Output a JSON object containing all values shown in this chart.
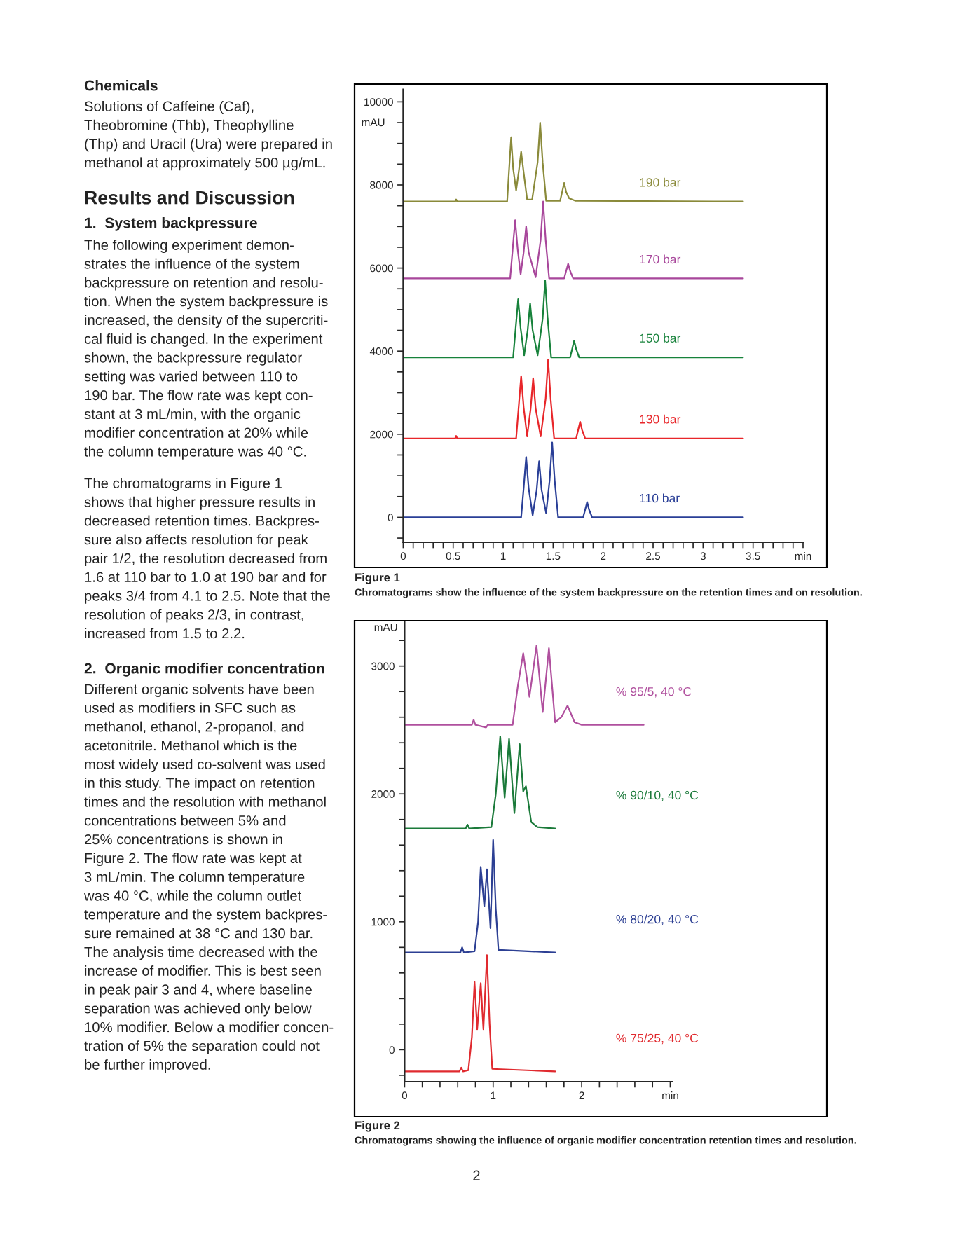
{
  "chart_data": [
    {
      "type": "line",
      "ylabel": "mAU",
      "annotations": [
        "Figure 1",
        "Chromatograms show the influence of the system backpressure on the retention times and on resolution.",
        "Chemicals",
        "Solutions of Caffeine (Caf),\nTheobromine (Thb), Theophylline\n(Thp) and Uracil (Ura) were prepared in\nmethanol at approximately 500 µg/mL.",
        "Results and Discussion",
        "1.  System backpressure",
        "The following experiment demon-\nstrates the influence of the system\nbackpressure on retention and resolu-\ntion. When the system backpressure is\nincreased, the density of the supercriti-\ncal fluid is changed. In the experiment\nshown, the backpressure regulator\nsetting was varied between 110 to\n190 bar. The flow rate was kept con-\nstant at 3 mL/min, with the organic\nmodifier concentration at 20% while\nthe column temperature was 40 °C.",
        "The chromatograms in Figure 1\nshows that higher pressure results in\ndecreased retention times. Backpres-\nsure also affects resolution for peak\npair 1/2, the resolution decreased from\n1.6 at 110 bar to 1.0 at 190 bar and for\npeaks 3/4 from 4.1 to 2.5. Note that the\nresolution of peaks 2/3, in contrast,\nincreased from 1.5 to 2.2."
      ],
      "xlim": [
        0,
        4
      ],
      "ylim": [
        -600,
        10300
      ],
      "xticks": [
        0,
        {
          "value": 0.1,
          "label": null
        },
        {
          "value": 0.2,
          "label": null
        },
        {
          "value": 0.3,
          "label": null
        },
        {
          "value": 0.4,
          "label": null
        },
        0.5,
        {
          "value": 0.6,
          "label": null
        },
        {
          "value": 0.7,
          "label": null
        },
        {
          "value": 0.8,
          "label": null
        },
        {
          "value": 0.9,
          "label": null
        },
        1,
        {
          "value": 1.1,
          "label": null
        },
        {
          "value": 1.2,
          "label": null
        },
        {
          "value": 1.3,
          "label": null
        },
        {
          "value": 1.4,
          "label": null
        },
        1.5,
        {
          "value": 1.6,
          "label": null
        },
        {
          "value": 1.7,
          "label": null
        },
        {
          "value": 1.8,
          "label": null
        },
        {
          "value": 1.9,
          "label": null
        },
        2,
        {
          "value": 2.1,
          "label": null
        },
        {
          "value": 2.2,
          "label": null
        },
        {
          "value": 2.3,
          "label": null
        },
        {
          "value": 2.4,
          "label": null
        },
        2.5,
        {
          "value": 2.6,
          "label": null
        },
        {
          "value": 2.7,
          "label": null
        },
        {
          "value": 2.8,
          "label": null
        },
        {
          "value": 2.9,
          "label": null
        },
        3,
        {
          "value": 3.1,
          "label": null
        },
        {
          "value": 3.2,
          "label": null
        },
        {
          "value": 3.3,
          "label": null
        },
        {
          "value": 3.4,
          "label": null
        },
        3.5,
        {
          "value": 3.6,
          "label": null
        },
        {
          "value": 3.7,
          "label": null
        },
        {
          "value": 3.8,
          "label": null
        },
        {
          "value": 3.9,
          "label": null
        },
        {
          "value": 4,
          "label": "min"
        }
      ],
      "yticks": [
        {
          "value": -500,
          "label": null
        },
        0,
        {
          "value": 500,
          "label": null
        },
        {
          "value": 1000,
          "label": null
        },
        {
          "value": 1500,
          "label": null
        },
        2000,
        {
          "value": 2500,
          "label": null
        },
        {
          "value": 3000,
          "label": null
        },
        {
          "value": 3500,
          "label": null
        },
        4000,
        {
          "value": 4500,
          "label": null
        },
        {
          "value": 5000,
          "label": null
        },
        {
          "value": 5500,
          "label": null
        },
        6000,
        {
          "value": 6500,
          "label": null
        },
        {
          "value": 7000,
          "label": null
        },
        {
          "value": 7500,
          "label": null
        },
        8000,
        {
          "value": 8500,
          "label": null
        },
        {
          "value": 9000,
          "label": null
        },
        {
          "value": 9500,
          "label": null
        },
        10000
      ],
      "series": [
        {
          "name": "110 bar",
          "color": "#2a3f97",
          "x": [
            0,
            1.18,
            1.205,
            1.23,
            1.255,
            1.295,
            1.335,
            1.36,
            1.385,
            1.43,
            1.465,
            1.49,
            1.515,
            1.55,
            1.8,
            1.82,
            1.84,
            1.86,
            1.89,
            3.4
          ],
          "values": [
            0,
            0,
            700,
            1450,
            700,
            50,
            650,
            1350,
            650,
            100,
            900,
            1800,
            900,
            0,
            0,
            180,
            370,
            180,
            0,
            0
          ]
        },
        {
          "name": "130 bar",
          "color": "#e8262a",
          "x": [
            0,
            0.52,
            0.53,
            0.54,
            1.13,
            1.155,
            1.18,
            1.205,
            1.24,
            1.275,
            1.3,
            1.325,
            1.375,
            1.425,
            1.45,
            1.475,
            1.51,
            1.73,
            1.75,
            1.77,
            1.79,
            1.82,
            3.4
          ],
          "values": [
            1900,
            1900,
            1960,
            1900,
            1900,
            2650,
            3400,
            2650,
            1950,
            2620,
            3350,
            2620,
            1950,
            2850,
            3800,
            2850,
            1900,
            1900,
            2100,
            2300,
            2100,
            1900,
            1900
          ]
        },
        {
          "name": "150 bar",
          "color": "#17823b",
          "x": [
            0,
            1.1,
            1.125,
            1.15,
            1.175,
            1.21,
            1.245,
            1.27,
            1.295,
            1.345,
            1.395,
            1.42,
            1.445,
            1.48,
            1.67,
            1.69,
            1.71,
            1.73,
            1.76,
            3.4
          ],
          "values": [
            3850,
            3850,
            4550,
            5250,
            4550,
            3900,
            4500,
            5150,
            4500,
            3900,
            4780,
            5700,
            4780,
            3850,
            3850,
            4050,
            4250,
            4050,
            3850,
            3850
          ]
        },
        {
          "name": "170 bar",
          "color": "#a8479b",
          "x": [
            0,
            1.07,
            1.095,
            1.12,
            1.145,
            1.175,
            1.205,
            1.23,
            1.255,
            1.325,
            1.375,
            1.4,
            1.425,
            1.46,
            1.61,
            1.63,
            1.65,
            1.67,
            1.7,
            3.4
          ],
          "values": [
            5750,
            5750,
            6450,
            7150,
            6450,
            5850,
            6380,
            7000,
            6380,
            5780,
            6680,
            7600,
            6680,
            5750,
            5750,
            5930,
            6100,
            5930,
            5750,
            5750
          ]
        },
        {
          "name": "190 bar",
          "color": "#8a8a3a",
          "x": [
            0,
            0.52,
            0.53,
            0.54,
            1.04,
            1.06,
            1.08,
            1.1,
            1.13,
            1.155,
            1.18,
            1.205,
            1.24,
            1.29,
            1.345,
            1.37,
            1.395,
            1.43,
            1.57,
            1.59,
            1.61,
            1.63,
            1.66,
            1.72,
            3.4
          ],
          "values": [
            7600,
            7600,
            7650,
            7600,
            7600,
            8400,
            9150,
            8400,
            7870,
            8300,
            8800,
            8300,
            7650,
            7650,
            8550,
            9500,
            8550,
            7620,
            7620,
            7830,
            8050,
            7830,
            7680,
            7620,
            7600
          ]
        }
      ]
    },
    {
      "type": "line",
      "ylabel": "mAU",
      "annotations": [
        "Figure 2",
        "Chromatograms showing the influence of organic modifier concentration retention times and resolution.",
        "2.  Organic modifier concentration",
        "Different organic solvents have been\nused as modifiers in SFC such as\nmethanol, ethanol, 2-propanol, and\nacetonitrile. Methanol which is the\nmost widely used co-solvent was used\nin this study. The impact on retention\ntimes and the resolution with methanol\nconcentrations between 5% and\n25% concentrations is shown in\nFigure 2. The flow rate was kept at\n3 mL/min. The column temperature\nwas 40 °C, while the column outlet\ntemperature and the system backpres-\nsure remained at 38 °C and 130 bar.\nThe analysis time decreased with the\nincrease of modifier. This is best seen\nin peak pair 3 and 4, where baseline\nseparation was achieved only below\n10% modifier. Below a modifier concen-\ntration of 5% the separation could not\nbe further improved.",
        "2"
      ],
      "xlim": [
        0,
        3.02
      ],
      "ylim": [
        -250,
        3350
      ],
      "xticks": [
        0,
        {
          "value": 0.2,
          "label": null
        },
        {
          "value": 0.4,
          "label": null
        },
        {
          "value": 0.6,
          "label": null
        },
        {
          "value": 0.8,
          "label": null
        },
        1,
        {
          "value": 1.2,
          "label": null
        },
        {
          "value": 1.4,
          "label": null
        },
        {
          "value": 1.6,
          "label": null
        },
        {
          "value": 1.8,
          "label": null
        },
        2,
        {
          "value": 2.2,
          "label": null
        },
        {
          "value": 2.4,
          "label": null
        },
        {
          "value": 2.6,
          "label": null
        },
        {
          "value": 2.8,
          "label": null
        },
        {
          "value": 3,
          "label": "min"
        }
      ],
      "yticks": [
        {
          "value": -200,
          "label": null
        },
        0,
        {
          "value": 200,
          "label": null
        },
        {
          "value": 400,
          "label": null
        },
        {
          "value": 600,
          "label": null
        },
        {
          "value": 800,
          "label": null
        },
        1000,
        {
          "value": 1200,
          "label": null
        },
        {
          "value": 1400,
          "label": null
        },
        {
          "value": 1600,
          "label": null
        },
        {
          "value": 1800,
          "label": null
        },
        2000,
        {
          "value": 2200,
          "label": null
        },
        {
          "value": 2400,
          "label": null
        },
        {
          "value": 2600,
          "label": null
        },
        {
          "value": 2800,
          "label": null
        },
        3000,
        {
          "value": 3200,
          "label": null
        }
      ],
      "series": [
        {
          "name": "% 95/5, 40 °C",
          "color": "#b0509e",
          "x": [
            0,
            0.76,
            0.78,
            0.8,
            0.92,
            0.94,
            1.22,
            1.28,
            1.34,
            1.41,
            1.49,
            1.56,
            1.63,
            1.7,
            1.77,
            1.84,
            1.92,
            2.0,
            2.7
          ],
          "values": [
            2540,
            2540,
            2580,
            2540,
            2520,
            2540,
            2540,
            2850,
            3100,
            2760,
            3160,
            2640,
            3140,
            2560,
            2600,
            2690,
            2560,
            2540,
            2540
          ]
        },
        {
          "name": "% 90/10, 40 °C",
          "color": "#1b7a3a",
          "x": [
            0,
            0.69,
            0.71,
            0.73,
            0.98,
            1.03,
            1.08,
            1.13,
            1.18,
            1.24,
            1.3,
            1.34,
            1.37,
            1.43,
            1.5,
            1.7
          ],
          "values": [
            1730,
            1730,
            1760,
            1730,
            1740,
            2000,
            2450,
            1970,
            2430,
            1850,
            2390,
            2020,
            2060,
            1780,
            1740,
            1730
          ]
        },
        {
          "name": "% 80/20, 40 °C",
          "color": "#2c3f93",
          "x": [
            0,
            0.63,
            0.65,
            0.67,
            0.79,
            0.83,
            0.86,
            0.9,
            0.93,
            0.97,
            1.0,
            1.03,
            1.06,
            1.7
          ],
          "values": [
            760,
            760,
            800,
            760,
            770,
            1000,
            1430,
            1120,
            1410,
            950,
            1640,
            1100,
            780,
            760
          ]
        },
        {
          "name": "% 75/25, 40 °C",
          "color": "#e02a2f",
          "x": [
            0,
            0.62,
            0.64,
            0.66,
            0.72,
            0.76,
            0.79,
            0.82,
            0.86,
            0.89,
            0.93,
            0.96,
            0.99,
            1.7
          ],
          "values": [
            -170,
            -170,
            -140,
            -170,
            -160,
            100,
            530,
            160,
            520,
            160,
            740,
            200,
            -150,
            -170
          ]
        }
      ]
    }
  ]
}
